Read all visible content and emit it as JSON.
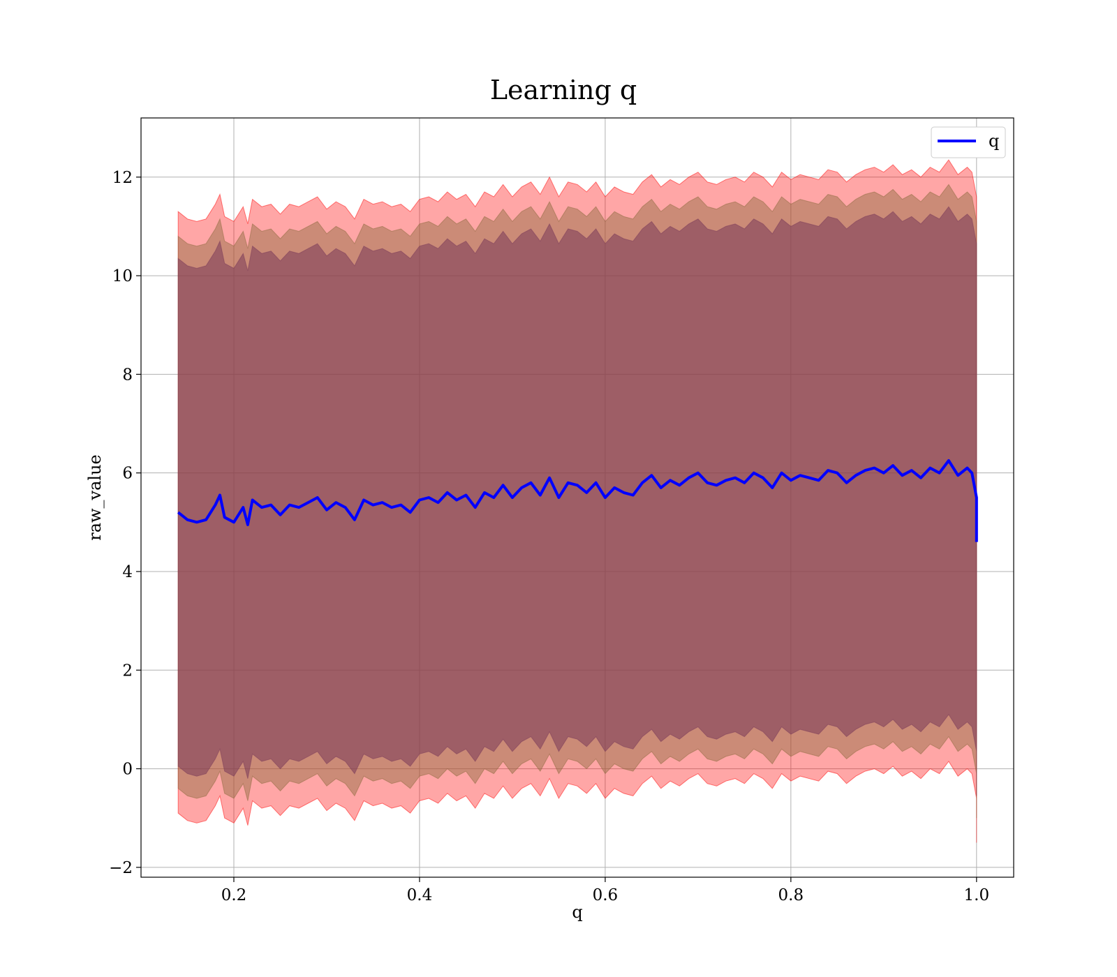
{
  "chart_data": {
    "type": "line",
    "title": "Learning q",
    "xlabel": "q",
    "ylabel": "raw_value",
    "xlim": [
      0.1,
      1.04
    ],
    "ylim": [
      -2.2,
      13.2
    ],
    "x_ticks": [
      0.2,
      0.4,
      0.6,
      0.8,
      1.0
    ],
    "x_tick_labels": [
      "0.2",
      "0.4",
      "0.6",
      "0.8",
      "1.0"
    ],
    "y_ticks": [
      -2,
      0,
      2,
      4,
      6,
      8,
      10,
      12
    ],
    "y_tick_labels": [
      "−2",
      "0",
      "2",
      "4",
      "6",
      "8",
      "10",
      "12"
    ],
    "grid": true,
    "legend": {
      "placement": "top-right",
      "entries": [
        {
          "label": "q",
          "color": "#0000ff"
        }
      ]
    },
    "colors": {
      "line": "#0000ff",
      "outer_band": "#ff0000",
      "middle_band": "#8b6a3e",
      "inner_band": "#7a3a5a"
    },
    "series": [
      {
        "name": "q",
        "x": [
          0.14,
          0.15,
          0.16,
          0.17,
          0.18,
          0.185,
          0.19,
          0.2,
          0.21,
          0.215,
          0.22,
          0.23,
          0.24,
          0.25,
          0.26,
          0.27,
          0.28,
          0.29,
          0.3,
          0.31,
          0.32,
          0.33,
          0.34,
          0.35,
          0.36,
          0.37,
          0.38,
          0.39,
          0.4,
          0.41,
          0.42,
          0.43,
          0.44,
          0.45,
          0.46,
          0.47,
          0.48,
          0.49,
          0.5,
          0.51,
          0.52,
          0.53,
          0.54,
          0.55,
          0.56,
          0.57,
          0.58,
          0.59,
          0.6,
          0.61,
          0.62,
          0.63,
          0.64,
          0.65,
          0.66,
          0.67,
          0.68,
          0.69,
          0.7,
          0.71,
          0.72,
          0.73,
          0.74,
          0.75,
          0.76,
          0.77,
          0.78,
          0.79,
          0.8,
          0.81,
          0.82,
          0.83,
          0.84,
          0.85,
          0.86,
          0.87,
          0.88,
          0.89,
          0.9,
          0.91,
          0.92,
          0.93,
          0.94,
          0.95,
          0.96,
          0.97,
          0.98,
          0.99,
          0.995,
          1.0,
          1.0
        ],
        "y": [
          5.2,
          5.05,
          5.0,
          5.05,
          5.35,
          5.55,
          5.1,
          5.0,
          5.3,
          4.95,
          5.45,
          5.3,
          5.35,
          5.15,
          5.35,
          5.3,
          5.4,
          5.5,
          5.25,
          5.4,
          5.3,
          5.05,
          5.45,
          5.35,
          5.4,
          5.3,
          5.35,
          5.2,
          5.45,
          5.5,
          5.4,
          5.6,
          5.45,
          5.55,
          5.3,
          5.6,
          5.5,
          5.75,
          5.5,
          5.7,
          5.8,
          5.55,
          5.9,
          5.5,
          5.8,
          5.75,
          5.6,
          5.8,
          5.5,
          5.7,
          5.6,
          5.55,
          5.8,
          5.95,
          5.7,
          5.85,
          5.75,
          5.9,
          6.0,
          5.8,
          5.75,
          5.85,
          5.9,
          5.8,
          6.0,
          5.9,
          5.7,
          6.0,
          5.85,
          5.95,
          5.9,
          5.85,
          6.05,
          6.0,
          5.8,
          5.95,
          6.05,
          6.1,
          6.0,
          6.15,
          5.95,
          6.05,
          5.9,
          6.1,
          6.0,
          6.25,
          5.95,
          6.1,
          6.0,
          5.5,
          4.6
        ],
        "bands": [
          {
            "name": "outer",
            "half_width": 6.1
          },
          {
            "name": "middle",
            "half_width": 5.6
          },
          {
            "name": "inner",
            "half_width": 5.15
          }
        ]
      }
    ]
  }
}
